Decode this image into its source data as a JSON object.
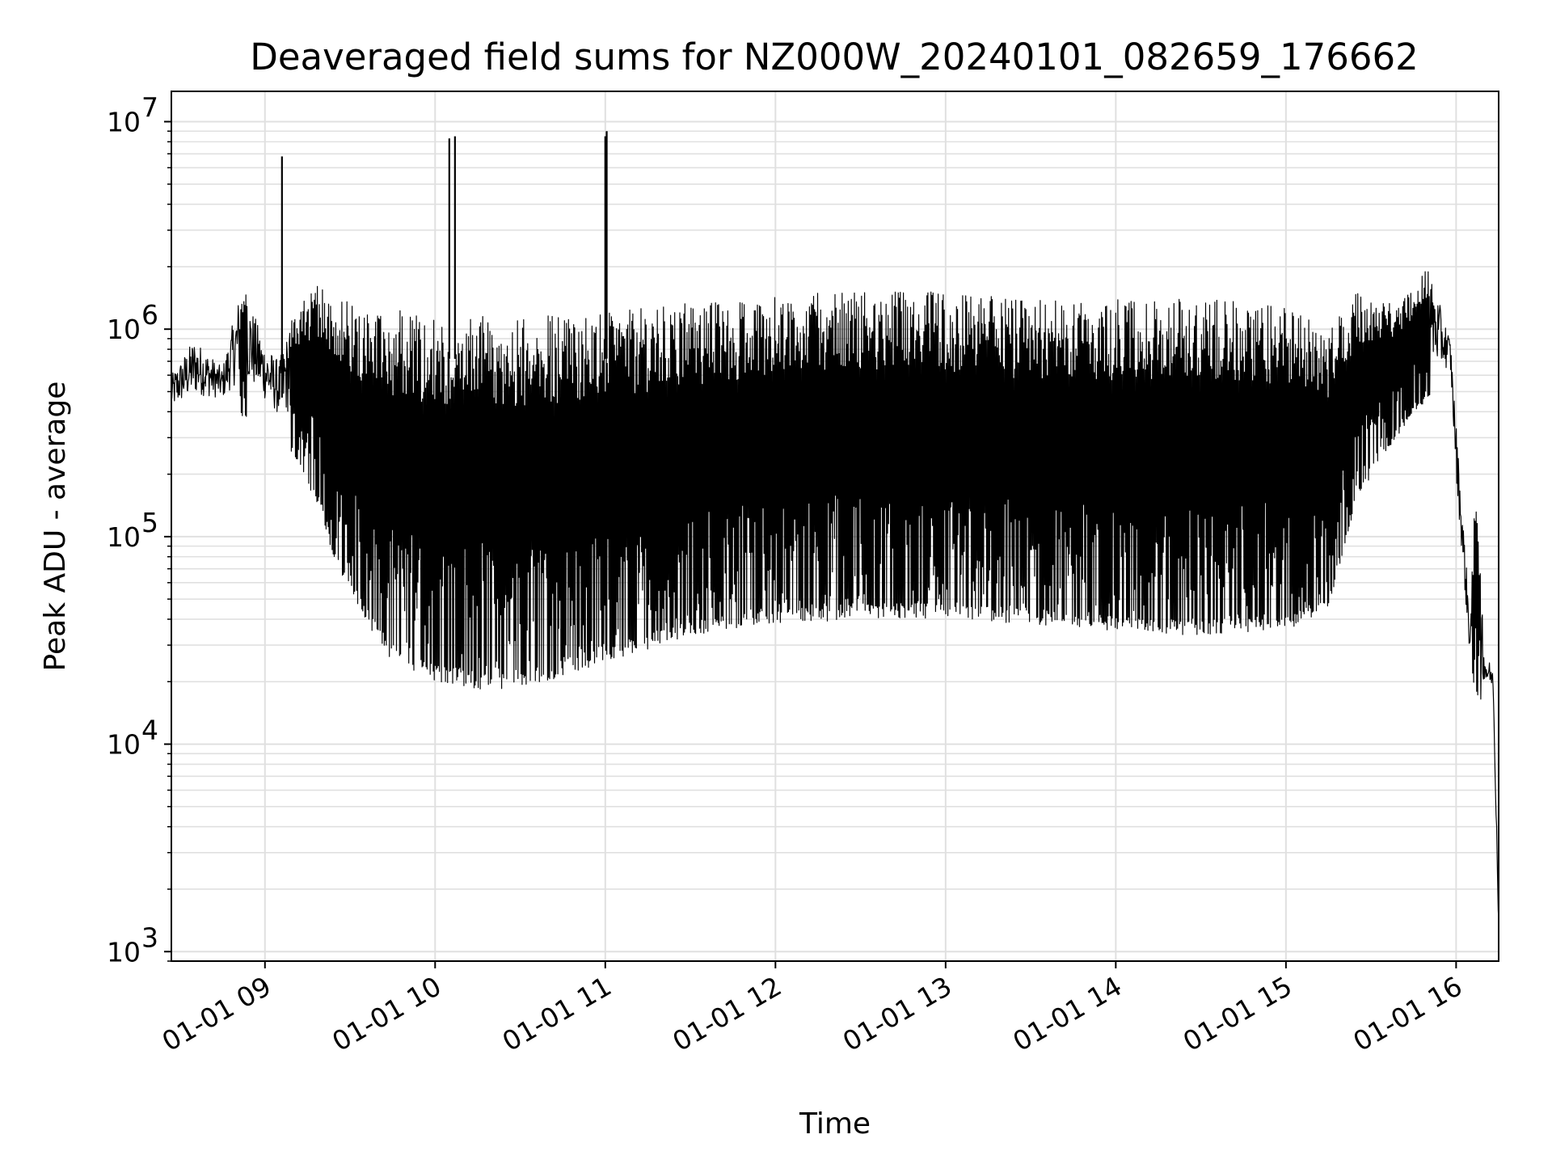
{
  "chart_data": {
    "type": "line",
    "title": "Deaveraged field sums for NZ000W_20240101_082659_176662",
    "xlabel": "Time",
    "ylabel": "Peak ADU - average",
    "x_scale": "time",
    "y_scale": "log",
    "xlim": [
      "2024-01-01 08:27:00",
      "2024-01-01 16:15:00"
    ],
    "ylim": [
      900,
      14000000
    ],
    "grid": true,
    "line_color": "#000000",
    "grid_color": "#e0e0e0",
    "x_ticks": [
      {
        "value": "2024-01-01 09:00:00",
        "label": "01-01 09"
      },
      {
        "value": "2024-01-01 10:00:00",
        "label": "01-01 10"
      },
      {
        "value": "2024-01-01 11:00:00",
        "label": "01-01 11"
      },
      {
        "value": "2024-01-01 12:00:00",
        "label": "01-01 12"
      },
      {
        "value": "2024-01-01 13:00:00",
        "label": "01-01 13"
      },
      {
        "value": "2024-01-01 14:00:00",
        "label": "01-01 14"
      },
      {
        "value": "2024-01-01 15:00:00",
        "label": "01-01 15"
      },
      {
        "value": "2024-01-01 16:00:00",
        "label": "01-01 16"
      }
    ],
    "y_ticks": [
      {
        "value": 1000,
        "base": "10",
        "exp": "3"
      },
      {
        "value": 10000,
        "base": "10",
        "exp": "4"
      },
      {
        "value": 100000,
        "base": "10",
        "exp": "5"
      },
      {
        "value": 1000000,
        "base": "10",
        "exp": "6"
      },
      {
        "value": 10000000,
        "base": "10",
        "exp": "7"
      }
    ],
    "series": [
      {
        "upper_envelope": [
          [
            "2024-01-01 08:27:00",
            600000
          ],
          [
            "2024-01-01 08:35:00",
            900000
          ],
          [
            "2024-01-01 08:45:00",
            650000
          ],
          [
            "2024-01-01 08:52:00",
            1700000
          ],
          [
            "2024-01-01 09:00:00",
            850000
          ],
          [
            "2024-01-01 09:05:00",
            700000
          ],
          [
            "2024-01-01 09:10:00",
            1200000
          ],
          [
            "2024-01-01 09:20:00",
            1700000
          ],
          [
            "2024-01-01 09:35:00",
            1300000
          ],
          [
            "2024-01-01 10:00:00",
            1200000
          ],
          [
            "2024-01-01 10:30:00",
            1200000
          ],
          [
            "2024-01-01 11:00:00",
            1200000
          ],
          [
            "2024-01-01 11:20:00",
            1300000
          ],
          [
            "2024-01-01 11:45:00",
            1400000
          ],
          [
            "2024-01-01 12:15:00",
            1500000
          ],
          [
            "2024-01-01 12:30:00",
            1600000
          ],
          [
            "2024-01-01 13:00:00",
            1500000
          ],
          [
            "2024-01-01 13:30:00",
            1400000
          ],
          [
            "2024-01-01 14:00:00",
            1400000
          ],
          [
            "2024-01-01 14:30:00",
            1400000
          ],
          [
            "2024-01-01 15:00:00",
            1300000
          ],
          [
            "2024-01-01 15:15:00",
            1000000
          ],
          [
            "2024-01-01 15:25:00",
            1500000
          ],
          [
            "2024-01-01 15:40:00",
            1300000
          ],
          [
            "2024-01-01 15:50:00",
            2000000
          ],
          [
            "2024-01-01 15:58:00",
            900000
          ],
          [
            "2024-01-01 16:00:00",
            350000
          ],
          [
            "2024-01-01 16:05:00",
            40000
          ],
          [
            "2024-01-01 16:07:00",
            220000
          ],
          [
            "2024-01-01 16:10:00",
            30000
          ],
          [
            "2024-01-01 16:13:00",
            22000
          ],
          [
            "2024-01-01 16:15:00",
            2000
          ]
        ],
        "lower_envelope": [
          [
            "2024-01-01 08:27:00",
            350000
          ],
          [
            "2024-01-01 08:45:00",
            400000
          ],
          [
            "2024-01-01 09:00:00",
            350000
          ],
          [
            "2024-01-01 09:10:00",
            250000
          ],
          [
            "2024-01-01 09:20:00",
            130000
          ],
          [
            "2024-01-01 09:25:00",
            70000
          ],
          [
            "2024-01-01 09:35:00",
            40000
          ],
          [
            "2024-01-01 09:45:00",
            25000
          ],
          [
            "2024-01-01 10:00:00",
            20000
          ],
          [
            "2024-01-01 10:20:00",
            18000
          ],
          [
            "2024-01-01 10:40:00",
            20000
          ],
          [
            "2024-01-01 11:00:00",
            25000
          ],
          [
            "2024-01-01 11:20:00",
            30000
          ],
          [
            "2024-01-01 11:40:00",
            35000
          ],
          [
            "2024-01-01 12:00:00",
            38000
          ],
          [
            "2024-01-01 12:30:00",
            40000
          ],
          [
            "2024-01-01 13:00:00",
            40000
          ],
          [
            "2024-01-01 13:30:00",
            38000
          ],
          [
            "2024-01-01 14:00:00",
            35000
          ],
          [
            "2024-01-01 14:30:00",
            33000
          ],
          [
            "2024-01-01 15:00:00",
            35000
          ],
          [
            "2024-01-01 15:15:00",
            45000
          ],
          [
            "2024-01-01 15:25:00",
            150000
          ],
          [
            "2024-01-01 15:35:00",
            250000
          ],
          [
            "2024-01-01 15:45:00",
            400000
          ],
          [
            "2024-01-01 15:58:00",
            550000
          ],
          [
            "2024-01-01 16:00:00",
            150000
          ],
          [
            "2024-01-01 16:05:00",
            20000
          ],
          [
            "2024-01-01 16:10:00",
            15000
          ],
          [
            "2024-01-01 16:13:00",
            18000
          ],
          [
            "2024-01-01 16:15:00",
            1000
          ]
        ],
        "spikes": [
          [
            "2024-01-01 09:06:00",
            6800000
          ],
          [
            "2024-01-01 10:05:00",
            8300000
          ],
          [
            "2024-01-01 10:07:00",
            8500000
          ],
          [
            "2024-01-01 11:00:00",
            8500000
          ],
          [
            "2024-01-01 11:00:30",
            9000000
          ]
        ]
      }
    ]
  }
}
